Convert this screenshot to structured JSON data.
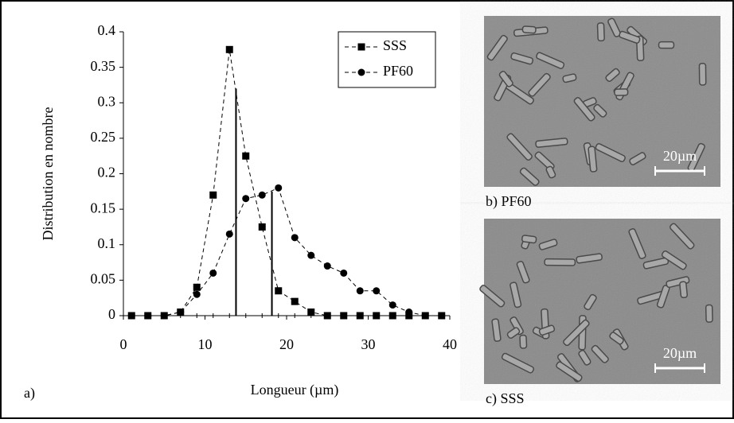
{
  "chart_data": {
    "type": "line",
    "panel_label": "a)",
    "x_label": "Longueur (µm)",
    "y_label": "Distribution en nombre",
    "x": [
      1,
      3,
      5,
      7,
      9,
      11,
      13,
      15,
      17,
      19,
      21,
      23,
      25,
      27,
      29,
      31,
      33,
      35,
      37,
      39
    ],
    "series": [
      {
        "name": "SSS",
        "color": "#000000",
        "marker": "square",
        "values": [
          0,
          0,
          0,
          0.005,
          0.04,
          0.17,
          0.375,
          0.225,
          0.125,
          0.035,
          0.02,
          0.005,
          0,
          0,
          0,
          0,
          0,
          0,
          0,
          0
        ]
      },
      {
        "name": "PF60",
        "color": "#000000",
        "marker": "circle",
        "values": [
          0,
          0,
          0,
          0.005,
          0.03,
          0.06,
          0.115,
          0.165,
          0.17,
          0.18,
          0.11,
          0.085,
          0.07,
          0.06,
          0.035,
          0.035,
          0.015,
          0.005,
          0,
          0
        ]
      }
    ],
    "vlines": [
      {
        "x": 13.8,
        "y": 0.32
      },
      {
        "x": 18.2,
        "y": 0.175
      }
    ],
    "xlim": [
      0,
      40
    ],
    "xticks": [
      0,
      10,
      20,
      30,
      40
    ],
    "ylim": [
      0,
      0.4
    ],
    "yticks": [
      0,
      0.05,
      0.1,
      0.15,
      0.2,
      0.25,
      0.3,
      0.35,
      0.4
    ],
    "legend": "upper right"
  },
  "photos": [
    {
      "caption": "b) PF60",
      "scale_bar": "20µm"
    },
    {
      "caption": "c) SSS",
      "scale_bar": "20µm"
    }
  ]
}
